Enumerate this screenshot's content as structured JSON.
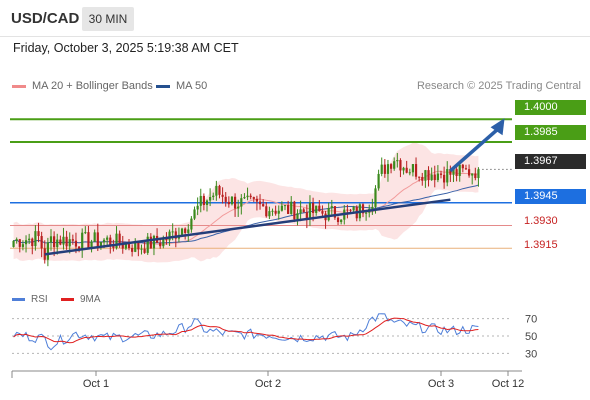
{
  "header": {
    "symbol": "USD/CAD",
    "interval": "30 MIN"
  },
  "datetime": "Friday, October 3, 2025 5:19:38 AM CET",
  "legend": {
    "items": [
      {
        "label": "MA 20 + Bollinger Bands",
        "color": "#f08a8a"
      },
      {
        "label": "MA 50",
        "color": "#25508f"
      }
    ],
    "credit": "Research © 2025 Trading Central"
  },
  "price_tags": [
    {
      "label": "1.4000",
      "style": "green"
    },
    {
      "label": "1.3985",
      "style": "green"
    },
    {
      "label": "1.3967",
      "style": "dark"
    },
    {
      "label": "1.3945",
      "style": "blue"
    },
    {
      "label": "1.3930",
      "style": "plain"
    },
    {
      "label": "1.3915",
      "style": "plain"
    }
  ],
  "rsi_legend": [
    {
      "label": "RSI",
      "color": "#4f7fd8"
    },
    {
      "label": "9MA",
      "color": "#e02020"
    }
  ],
  "chart_data": [
    {
      "type": "candlestick",
      "title": "",
      "x_labels": [
        "Oct 1",
        "Oct 2",
        "Oct 3",
        "Oct 12"
      ],
      "ylim": [
        1.3902,
        1.4014
      ],
      "current_price": 1.3967,
      "resistance_levels": [
        1.4,
        1.3985
      ],
      "pivot_level": 1.3945,
      "support_levels": [
        1.393,
        1.3915
      ],
      "bars": 150,
      "close_path": [
        [
          0,
          1.392
        ],
        [
          8,
          1.3922
        ],
        [
          10,
          1.391
        ],
        [
          12,
          1.3921
        ],
        [
          20,
          1.392
        ],
        [
          30,
          1.392
        ],
        [
          40,
          1.3916
        ],
        [
          48,
          1.392
        ],
        [
          55,
          1.393
        ],
        [
          60,
          1.3944
        ],
        [
          65,
          1.3952
        ],
        [
          70,
          1.3946
        ],
        [
          80,
          1.3942
        ],
        [
          90,
          1.394
        ],
        [
          100,
          1.3938
        ],
        [
          110,
          1.3938
        ],
        [
          115,
          1.3948
        ],
        [
          118,
          1.3966
        ],
        [
          122,
          1.3975
        ],
        [
          126,
          1.3968
        ],
        [
          132,
          1.3965
        ],
        [
          140,
          1.3964
        ],
        [
          147,
          1.3966
        ],
        [
          150,
          1.3967
        ]
      ],
      "trendline": {
        "from": [
          10,
          1.3911
        ],
        "to": [
          140,
          1.3947
        ]
      },
      "projection": {
        "from": [
          140,
          1.3966
        ],
        "to": [
          150,
          1.4
        ]
      }
    },
    {
      "type": "line",
      "title": "",
      "series": [
        {
          "name": "RSI",
          "color": "#4f7fd8"
        },
        {
          "name": "9MA",
          "color": "#e02020"
        }
      ],
      "yticks": [
        70,
        50,
        30
      ],
      "ylim": [
        20,
        80
      ],
      "rsi_path": [
        [
          0,
          52
        ],
        [
          10,
          47
        ],
        [
          12,
          40
        ],
        [
          20,
          53
        ],
        [
          30,
          48
        ],
        [
          40,
          50
        ],
        [
          48,
          52
        ],
        [
          55,
          60
        ],
        [
          58,
          66
        ],
        [
          62,
          56
        ],
        [
          70,
          52
        ],
        [
          80,
          52
        ],
        [
          90,
          48
        ],
        [
          100,
          50
        ],
        [
          108,
          49
        ],
        [
          112,
          60
        ],
        [
          115,
          70
        ],
        [
          118,
          73
        ],
        [
          122,
          65
        ],
        [
          130,
          60
        ],
        [
          140,
          56
        ],
        [
          147,
          58
        ],
        [
          150,
          57
        ]
      ]
    }
  ]
}
